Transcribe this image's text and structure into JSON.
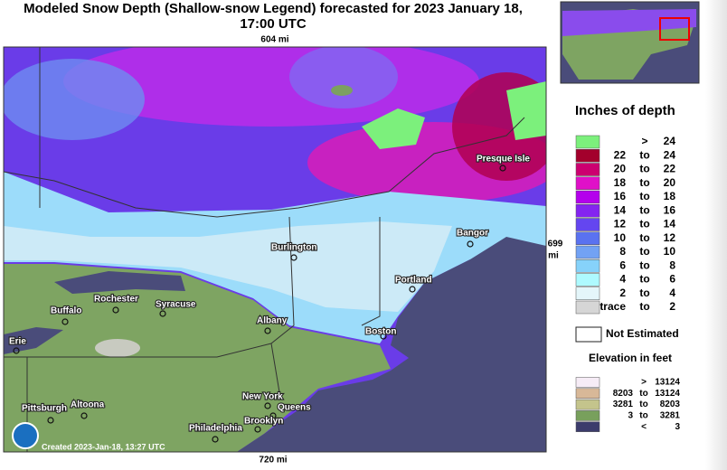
{
  "title": [
    "Modeled Snow Depth (Shallow-snow Legend) forecasted for 2023 January 18,",
    "17:00 UTC"
  ],
  "map": {
    "top_label": "604 mi",
    "bottom_label": "720 mi",
    "right_label": [
      "699",
      "mi"
    ],
    "created": "Created 2023-Jan-18, 13:27 UTC",
    "cities": [
      "Presque Isle",
      "Bangor",
      "Burlington",
      "Portland",
      "Rochester",
      "Syracuse",
      "Buffalo",
      "Albany",
      "Boston",
      "Erie",
      "New York",
      "Queens",
      "Pittsburgh",
      "Altoona",
      "Brooklyn",
      "Philadelphia"
    ]
  },
  "legend": {
    "title": "Inches of depth",
    "depth_rows": [
      {
        "cells": [
          ">",
          "24"
        ],
        "color": "#7cf07c"
      },
      {
        "cells": [
          "22",
          "to",
          "24"
        ],
        "color": "#a3002c"
      },
      {
        "cells": [
          "20",
          "to",
          "22"
        ],
        "color": "#cc0070"
      },
      {
        "cells": [
          "18",
          "to",
          "20"
        ],
        "color": "#e010c8"
      },
      {
        "cells": [
          "16",
          "to",
          "18"
        ],
        "color": "#b400ec"
      },
      {
        "cells": [
          "14",
          "to",
          "16"
        ],
        "color": "#8424f0"
      },
      {
        "cells": [
          "12",
          "to",
          "14"
        ],
        "color": "#6446f0"
      },
      {
        "cells": [
          "10",
          "to",
          "12"
        ],
        "color": "#5a72f0"
      },
      {
        "cells": [
          "8",
          "to",
          "10"
        ],
        "color": "#72a2f4"
      },
      {
        "cells": [
          "6",
          "to",
          "8"
        ],
        "color": "#86d2fa"
      },
      {
        "cells": [
          "4",
          "to",
          "6"
        ],
        "color": "#aefaff"
      },
      {
        "cells": [
          "2",
          "to",
          "4"
        ],
        "color": "#e4f6fa"
      },
      {
        "cells": [
          "trace",
          "to",
          "2"
        ],
        "color": "#d6d6d6"
      }
    ],
    "not_estimated": "Not Estimated",
    "elevation_title": "Elevation in feet",
    "elevation_rows": [
      {
        "cells": [
          ">",
          "13124"
        ],
        "color": "#f6ecf6"
      },
      {
        "cells": [
          "8203",
          "to",
          "13124"
        ],
        "color": "#d8b898"
      },
      {
        "cells": [
          "3281",
          "to",
          "8203"
        ],
        "color": "#c4c48c"
      },
      {
        "cells": [
          "3",
          "to",
          "3281"
        ],
        "color": "#78a05c"
      },
      {
        "cells": [
          "<",
          "3"
        ],
        "color": "#3c3c6c"
      }
    ]
  }
}
